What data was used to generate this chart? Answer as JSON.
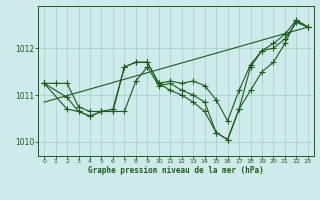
{
  "title": "Graphe pression niveau de la mer (hPa)",
  "background_color": "#ceeaeb",
  "grid_color": "#9ecfcf",
  "line_color": "#1a5c1a",
  "xlim": [
    -0.5,
    23.5
  ],
  "ylim": [
    1009.7,
    1012.9
  ],
  "yticks": [
    1010,
    1011,
    1012
  ],
  "xticks": [
    0,
    1,
    2,
    3,
    4,
    5,
    6,
    7,
    8,
    9,
    10,
    11,
    12,
    13,
    14,
    15,
    16,
    17,
    18,
    19,
    20,
    21,
    22,
    23
  ],
  "series1_x": [
    0,
    1,
    2,
    3,
    4,
    5,
    6,
    7,
    8,
    9,
    10,
    11,
    12,
    13,
    14,
    15,
    16,
    17,
    18,
    19,
    20,
    21,
    22,
    23
  ],
  "series1_y": [
    1011.25,
    1011.25,
    1011.25,
    1010.75,
    1010.65,
    1010.65,
    1010.7,
    1011.6,
    1011.7,
    1011.7,
    1011.25,
    1011.3,
    1011.25,
    1011.3,
    1011.2,
    1010.9,
    1010.45,
    1011.1,
    1011.65,
    1011.95,
    1012.0,
    1012.2,
    1012.55,
    1012.45
  ],
  "series2_x": [
    0,
    2,
    3,
    4,
    5,
    6,
    7,
    8,
    9,
    10,
    11,
    12,
    13,
    14,
    15,
    16,
    17,
    18,
    19,
    20,
    21,
    22,
    23
  ],
  "series2_y": [
    1011.25,
    1010.95,
    1010.65,
    1010.55,
    1010.65,
    1010.65,
    1010.65,
    1011.3,
    1011.6,
    1011.2,
    1011.25,
    1011.1,
    1011.0,
    1010.85,
    1010.2,
    1010.05,
    1010.7,
    1011.1,
    1011.5,
    1011.7,
    1012.1,
    1012.6,
    1012.45
  ],
  "series3_x": [
    0,
    2,
    3,
    4,
    5,
    6,
    7,
    8,
    9,
    10,
    11,
    12,
    13,
    14,
    15,
    16,
    17,
    18,
    19,
    20,
    21,
    22,
    23
  ],
  "series3_y": [
    1011.25,
    1010.7,
    1010.65,
    1010.55,
    1010.65,
    1010.65,
    1011.6,
    1011.7,
    1011.7,
    1011.25,
    1011.1,
    1011.0,
    1010.85,
    1010.65,
    1010.2,
    1010.05,
    1010.7,
    1011.6,
    1011.95,
    1012.1,
    1012.3,
    1012.6,
    1012.45
  ],
  "trend_x": [
    0,
    23
  ],
  "trend_y": [
    1010.85,
    1012.45
  ]
}
